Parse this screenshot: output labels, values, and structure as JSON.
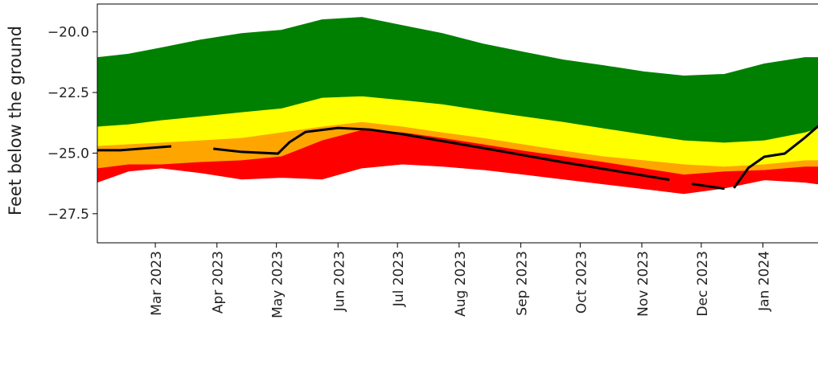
{
  "chart_data": {
    "type": "band-line",
    "y_label": "Feet below the ground",
    "xlim": [
      2023.082,
      2024.076
    ],
    "ylim": [
      -28.7,
      -18.85
    ],
    "xticks": [
      {
        "value": 2023.162,
        "label": "Mar 2023"
      },
      {
        "value": 2023.247,
        "label": "Apr 2023"
      },
      {
        "value": 2023.329,
        "label": "May 2023"
      },
      {
        "value": 2023.414,
        "label": "Jun 2023"
      },
      {
        "value": 2023.496,
        "label": "Jul 2023"
      },
      {
        "value": 2023.581,
        "label": "Aug 2023"
      },
      {
        "value": 2023.666,
        "label": "Sep 2023"
      },
      {
        "value": 2023.748,
        "label": "Oct 2023"
      },
      {
        "value": 2023.833,
        "label": "Nov 2023"
      },
      {
        "value": 2023.915,
        "label": "Dec 2023"
      },
      {
        "value": 2024.0,
        "label": "Jan 2024"
      }
    ],
    "yticks": [
      {
        "value": -20,
        "label": "−20.0"
      },
      {
        "value": -22.5,
        "label": "−22.5"
      },
      {
        "value": -25,
        "label": "−25.0"
      },
      {
        "value": -27.5,
        "label": "−27.5"
      }
    ],
    "x": [
      2023.082,
      2023.125,
      2023.17,
      2023.225,
      2023.281,
      2023.336,
      2023.392,
      2023.447,
      2023.503,
      2023.558,
      2023.614,
      2023.669,
      2023.725,
      2023.78,
      2023.836,
      2023.891,
      2023.947,
      2024.002,
      2024.058,
      2024.076
    ],
    "band_colors": [
      "#ff0000",
      "#ffa500",
      "#ffff00",
      "#008000"
    ],
    "boundaries": [
      [
        -26.2,
        -25.74,
        -25.61,
        -25.81,
        -26.07,
        -26.0,
        -26.07,
        -25.61,
        -25.45,
        -25.54,
        -25.68,
        -25.87,
        -26.07,
        -26.27,
        -26.47,
        -26.67,
        -26.44,
        -26.1,
        -26.2,
        -26.27
      ],
      [
        -25.61,
        -25.45,
        -25.45,
        -25.35,
        -25.28,
        -25.12,
        -24.46,
        -24.03,
        -24.13,
        -24.36,
        -24.62,
        -24.88,
        -25.12,
        -25.35,
        -25.61,
        -25.87,
        -25.74,
        -25.68,
        -25.54,
        -25.54
      ],
      [
        -24.69,
        -24.62,
        -24.55,
        -24.46,
        -24.36,
        -24.13,
        -23.89,
        -23.7,
        -23.89,
        -24.13,
        -24.36,
        -24.62,
        -24.88,
        -25.12,
        -25.28,
        -25.45,
        -25.54,
        -25.45,
        -25.28,
        -25.28
      ],
      [
        -23.89,
        -23.8,
        -23.63,
        -23.47,
        -23.3,
        -23.14,
        -22.7,
        -22.64,
        -22.8,
        -22.97,
        -23.23,
        -23.47,
        -23.7,
        -23.96,
        -24.22,
        -24.46,
        -24.55,
        -24.46,
        -24.13,
        -23.96
      ],
      [
        -21.06,
        -20.92,
        -20.66,
        -20.33,
        -20.07,
        -19.93,
        -19.5,
        -19.4,
        -19.74,
        -20.07,
        -20.5,
        -20.83,
        -21.16,
        -21.39,
        -21.65,
        -21.82,
        -21.75,
        -21.32,
        -21.06,
        -21.06
      ]
    ],
    "line": {
      "color": "#000000",
      "x": [
        2023.082,
        2023.114,
        2023.184,
        2023.214,
        2023.242,
        2023.281,
        2023.331,
        2023.347,
        2023.369,
        2023.414,
        2023.458,
        2023.503,
        2023.614,
        2023.725,
        2023.871,
        2023.887,
        2023.902,
        2023.947,
        2023.953,
        2023.96,
        2023.98,
        2024.002,
        2024.03,
        2024.058,
        2024.076
      ],
      "values": [
        -24.88,
        -24.88,
        -24.72,
        null,
        -24.82,
        -24.95,
        -25.02,
        -24.55,
        -24.13,
        -23.96,
        -24.03,
        -24.22,
        -24.79,
        -25.38,
        -26.1,
        null,
        -26.27,
        -26.47,
        null,
        -26.44,
        -25.61,
        -25.15,
        -25.02,
        -24.36,
        -23.89
      ]
    }
  }
}
